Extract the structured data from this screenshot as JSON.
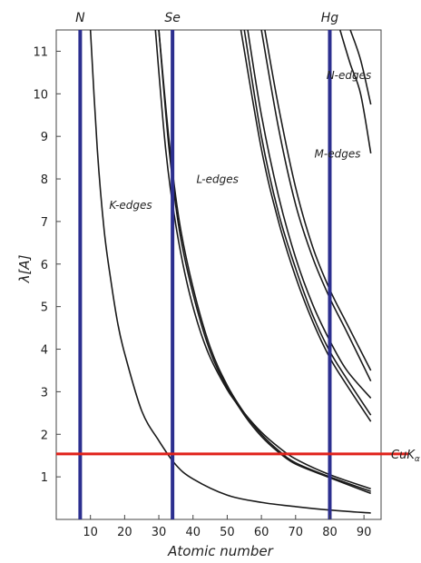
{
  "chart_data": {
    "type": "line",
    "title": "",
    "xlabel": "Atomic number",
    "ylabel": "λ[A]",
    "xlim": [
      0,
      95
    ],
    "ylim": [
      0,
      11.5
    ],
    "xticks": [
      10,
      20,
      30,
      40,
      50,
      60,
      70,
      80,
      90
    ],
    "yticks": [
      1,
      2,
      3,
      4,
      5,
      6,
      7,
      8,
      9,
      10,
      11
    ],
    "grid": false,
    "series": [
      {
        "name": "K-edges",
        "group": "K",
        "x": [
          10,
          12,
          14,
          16,
          18,
          20,
          25,
          30,
          35,
          40,
          50,
          60,
          70,
          80,
          92
        ],
        "y": [
          11.5,
          8.7,
          6.8,
          5.6,
          4.6,
          3.9,
          2.55,
          1.85,
          1.28,
          0.95,
          0.57,
          0.4,
          0.3,
          0.22,
          0.15
        ]
      },
      {
        "name": "",
        "group": "L",
        "x": [
          30,
          33,
          36,
          40,
          45,
          50,
          55,
          60,
          65,
          70,
          80,
          92
        ],
        "y": [
          11.5,
          8.7,
          6.8,
          5.3,
          3.95,
          3.1,
          2.45,
          1.95,
          1.58,
          1.3,
          0.98,
          0.61
        ]
      },
      {
        "name": "",
        "group": "L",
        "x": [
          30,
          33,
          36,
          40,
          45,
          50,
          55,
          60,
          65,
          70,
          80,
          92
        ],
        "y": [
          11.5,
          8.9,
          7.0,
          5.45,
          4.05,
          3.15,
          2.5,
          2.0,
          1.62,
          1.33,
          1.0,
          0.66
        ]
      },
      {
        "name": "",
        "group": "L",
        "x": [
          29,
          32,
          35,
          39,
          44,
          50,
          55,
          60,
          65,
          70,
          80,
          92
        ],
        "y": [
          11.5,
          8.7,
          6.9,
          5.3,
          4.0,
          3.05,
          2.5,
          2.05,
          1.7,
          1.42,
          1.05,
          0.72
        ]
      },
      {
        "name": "",
        "group": "M",
        "x": [
          54,
          60,
          65,
          70,
          75,
          80,
          85,
          92
        ],
        "y": [
          11.5,
          8.7,
          7.0,
          5.7,
          4.65,
          3.8,
          3.15,
          2.3
        ]
      },
      {
        "name": "",
        "group": "M",
        "x": [
          55,
          60,
          65,
          70,
          75,
          80,
          85,
          92
        ],
        "y": [
          11.5,
          9.0,
          7.2,
          5.9,
          4.8,
          3.95,
          3.3,
          2.45
        ]
      },
      {
        "name": "",
        "group": "M",
        "x": [
          56,
          60,
          65,
          70,
          75,
          80,
          85,
          92
        ],
        "y": [
          11.5,
          9.5,
          7.6,
          6.15,
          5.05,
          4.2,
          3.5,
          2.85
        ]
      },
      {
        "name": "",
        "group": "M",
        "x": [
          60,
          65,
          70,
          75,
          80,
          85,
          92
        ],
        "y": [
          11.5,
          9.2,
          7.4,
          6.15,
          5.2,
          4.4,
          3.25
        ]
      },
      {
        "name": "",
        "group": "M",
        "x": [
          61,
          65,
          70,
          75,
          80,
          85,
          92
        ],
        "y": [
          11.5,
          9.7,
          7.8,
          6.4,
          5.4,
          4.6,
          3.5
        ]
      },
      {
        "name": "",
        "group": "N",
        "x": [
          83,
          86,
          89,
          92
        ],
        "y": [
          11.5,
          10.7,
          10.0,
          8.6
        ]
      },
      {
        "name": "",
        "group": "N",
        "x": [
          86,
          89,
          92
        ],
        "y": [
          11.5,
          10.8,
          9.75
        ]
      }
    ],
    "edge_labels": [
      {
        "text": "K-edges",
        "x": 15.5,
        "y": 7.3
      },
      {
        "text": "L-edges",
        "x": 41,
        "y": 7.9
      },
      {
        "text": "M-edges",
        "x": 75.5,
        "y": 8.5
      },
      {
        "text": "N-edges",
        "x": 79,
        "y": 10.35
      }
    ],
    "vertical_lines": [
      {
        "label": "N",
        "x": 7,
        "color": "#2c2f8f"
      },
      {
        "label": "Se",
        "x": 34,
        "color": "#2c2f8f"
      },
      {
        "label": "Hg",
        "x": 80,
        "color": "#2c2f8f"
      }
    ],
    "horizontal_line": {
      "label": "CuK",
      "subscript": "α",
      "y": 1.54,
      "color": "#e0221b"
    }
  }
}
